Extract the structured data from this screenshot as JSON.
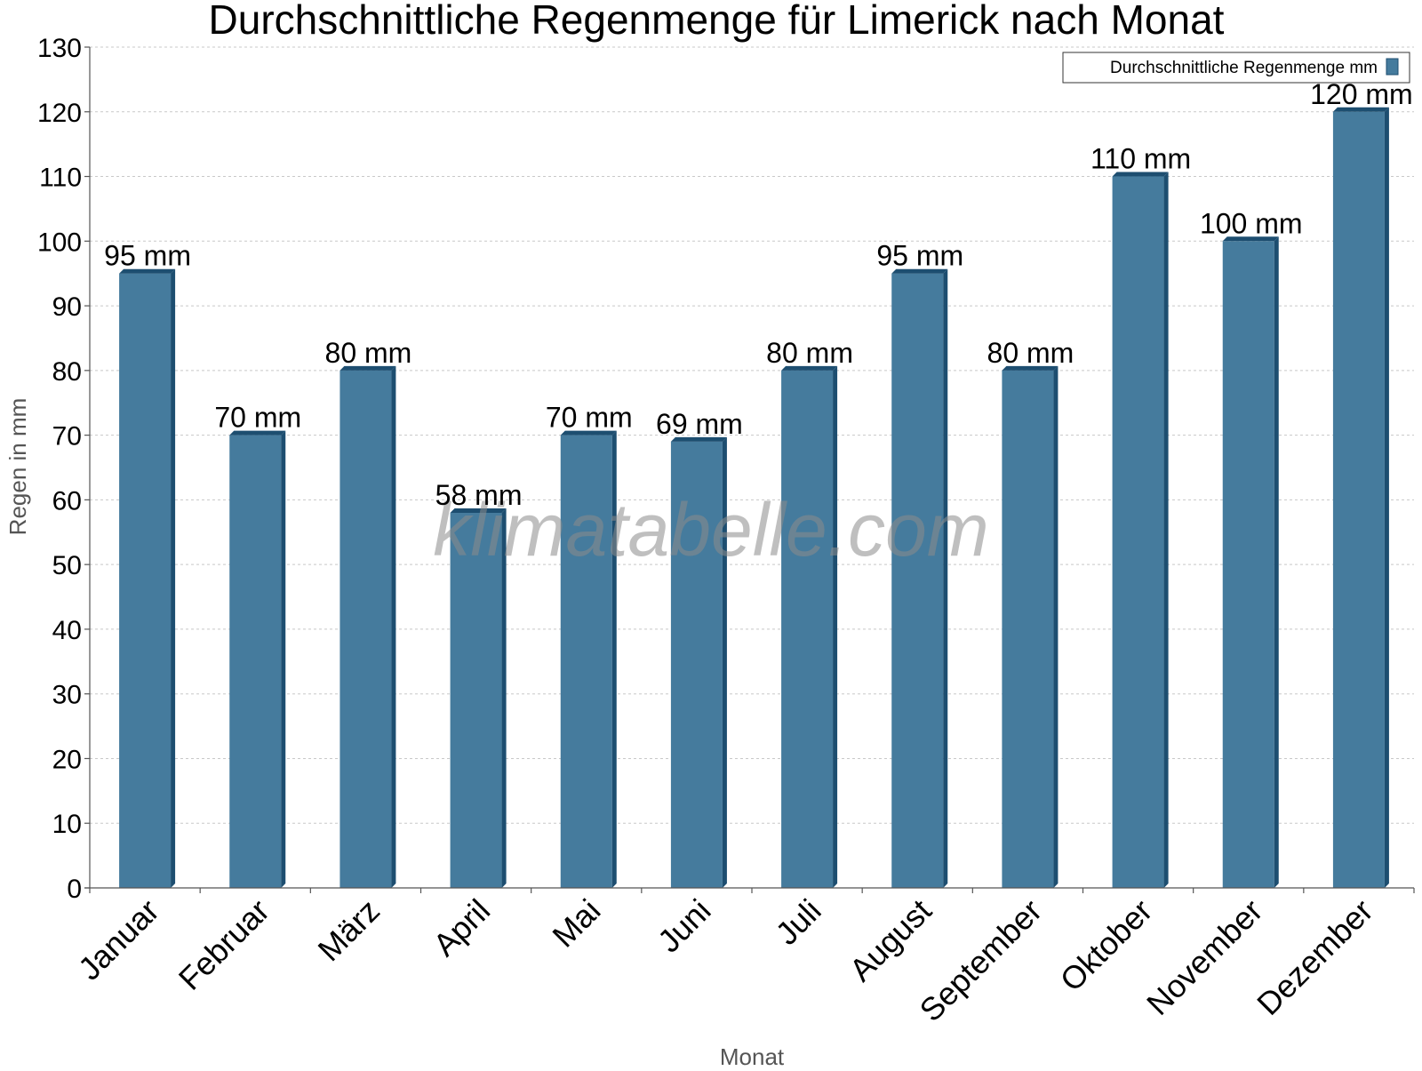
{
  "chart_data": {
    "type": "bar",
    "title": "Durchschnittliche Regenmenge für Limerick nach Monat",
    "xlabel": "Monat",
    "ylabel": "Regen in mm",
    "ylim": [
      0,
      130
    ],
    "yticks": [
      0,
      10,
      20,
      30,
      40,
      50,
      60,
      70,
      80,
      90,
      100,
      110,
      120,
      130
    ],
    "grid": true,
    "legend_position": "top-right",
    "categories": [
      "Januar",
      "Februar",
      "März",
      "April",
      "Mai",
      "Juni",
      "Juli",
      "August",
      "September",
      "Oktober",
      "November",
      "Dezember"
    ],
    "series": [
      {
        "name": "Durchschnittliche Regenmenge mm",
        "values": [
          95,
          70,
          80,
          58,
          70,
          69,
          80,
          95,
          80,
          110,
          100,
          120
        ],
        "data_labels": [
          "95 mm",
          "70 mm",
          "80 mm",
          "58 mm",
          "70 mm",
          "69 mm",
          "80 mm",
          "95 mm",
          "80 mm",
          "110 mm",
          "100 mm",
          "120 mm"
        ],
        "color": "#457b9d",
        "side_color": "#1d4e70"
      }
    ],
    "watermark": "klimatabelle.com"
  }
}
